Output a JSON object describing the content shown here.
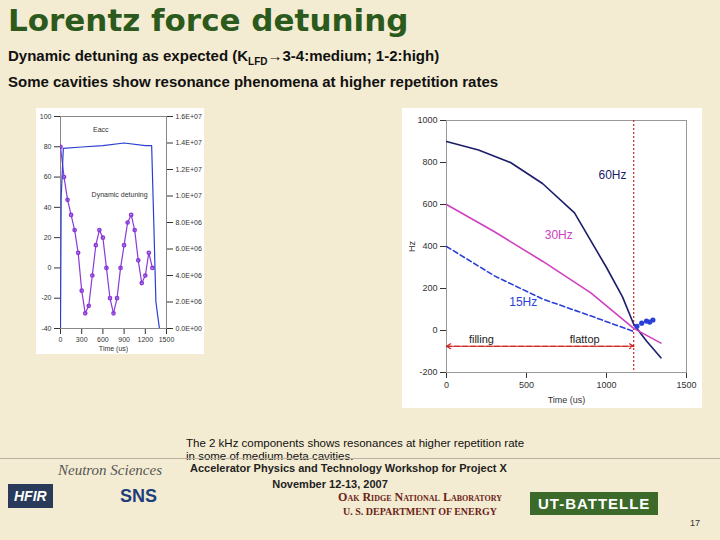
{
  "title": "Lorentz force detuning",
  "subtitle": [
    [
      {
        "text": "Dynamic detuning as expected (K"
      },
      {
        "text": "LFD",
        "sub": true
      },
      {
        "text": "→3-4:medium; 1-2:high)"
      }
    ],
    [
      {
        "text": "Some cavities show resonance phenomena at higher repetition rates"
      }
    ]
  ],
  "caption": "The 2 kHz components shows resonances at higher repetition rate in some of medium beta cavities.",
  "footer": {
    "workshop": "Accelerator Physics and Technology Workshop for Project X",
    "date": "November 12-13, 2007",
    "lab": "Oak Ridge National Laboratory",
    "department": "U. S. DEPARTMENT OF ENERGY",
    "page": "17",
    "logos": [
      "Neutron Sciences",
      "HFIR",
      "SNS",
      "UT-BATTELLE"
    ]
  },
  "chart_data": [
    {
      "type": "line",
      "xlabel": "Time (us)",
      "xlim": [
        0,
        1500
      ],
      "xticks": [
        0,
        300,
        600,
        900,
        1200,
        1500
      ],
      "ylim": [
        -40,
        100
      ],
      "yticks": [
        -40,
        -20,
        0,
        20,
        40,
        60,
        80,
        100
      ],
      "y2lim": [
        0,
        16000000
      ],
      "y2ticks": [
        {
          "value": 0,
          "label": "0.0E+00"
        },
        {
          "value": 2000000,
          "label": "2.0E+06"
        },
        {
          "value": 4000000,
          "label": "4.0E+06"
        },
        {
          "value": 6000000,
          "label": "6.0E+06"
        },
        {
          "value": 8000000,
          "label": "8.0E+06"
        },
        {
          "value": 10000000,
          "label": "1.0E+07"
        },
        {
          "value": 12000000,
          "label": "1.2E+07"
        },
        {
          "value": 14000000,
          "label": "1.4E+07"
        },
        {
          "value": 16000000,
          "label": "1.6E+07"
        }
      ],
      "series": [
        {
          "name": "Eacc",
          "axis": "y2",
          "color": "#2a3fd0",
          "line_style": "solid",
          "x": [
            0,
            10,
            40,
            300,
            600,
            900,
            1200,
            1290,
            1320,
            1350,
            1400
          ],
          "values": [
            0,
            10000000,
            13600000,
            13700000,
            13800000,
            14000000,
            13800000,
            13800000,
            8000000,
            2000000,
            0
          ],
          "label_at": [
            460,
            15000000
          ]
        },
        {
          "name": "Dynamic detuning",
          "color": "#8a3ad8",
          "line_style": "solid",
          "marker": "circle",
          "x": [
            0,
            50,
            100,
            150,
            200,
            250,
            300,
            350,
            400,
            450,
            500,
            550,
            600,
            650,
            700,
            750,
            800,
            850,
            900,
            950,
            1000,
            1050,
            1100,
            1150,
            1200,
            1250,
            1300
          ],
          "values": [
            80,
            60,
            45,
            35,
            25,
            10,
            -15,
            -30,
            -25,
            -5,
            15,
            25,
            20,
            0,
            -20,
            -30,
            -20,
            0,
            15,
            30,
            35,
            25,
            5,
            -10,
            -5,
            10,
            0
          ],
          "label_at": [
            440,
            48
          ]
        }
      ]
    },
    {
      "type": "line",
      "xlabel": "Time (us)",
      "ylabel": "Hz",
      "xlim": [
        0,
        1500
      ],
      "xticks": [
        0,
        500,
        1000,
        1500
      ],
      "ylim": [
        -200,
        1000
      ],
      "yticks": [
        -200,
        0,
        200,
        400,
        600,
        800,
        1000
      ],
      "series": [
        {
          "name": "60Hz",
          "color": "#1c1c6a",
          "line_style": "solid",
          "x": [
            0,
            200,
            400,
            600,
            800,
            1000,
            1100,
            1170,
            1250,
            1340
          ],
          "values": [
            900,
            860,
            800,
            700,
            560,
            300,
            160,
            30,
            -50,
            -130
          ],
          "label_at": [
            950,
            740
          ]
        },
        {
          "name": "30Hz",
          "color": "#d040c0",
          "line_style": "solid",
          "x": [
            0,
            300,
            600,
            900,
            1170,
            1340
          ],
          "values": [
            600,
            470,
            330,
            180,
            10,
            -60
          ],
          "label_at": [
            614,
            456
          ]
        },
        {
          "name": "15Hz",
          "color": "#2a3fd8",
          "line_style": "dashed",
          "x": [
            0,
            300,
            600,
            900,
            1170
          ],
          "values": [
            400,
            260,
            150,
            70,
            -5
          ],
          "label_at": [
            392,
            135
          ]
        }
      ],
      "points": {
        "color": "#2a3fd8",
        "marker": "circle",
        "x": [
          1190,
          1220,
          1250,
          1270,
          1290
        ],
        "values": [
          20,
          35,
          45,
          40,
          50
        ]
      },
      "vline": {
        "x": 1170,
        "color": "#d02020",
        "line_style": "dotted"
      },
      "arrow": {
        "x1": 0,
        "x2": 1170,
        "y": -75,
        "color": "#d02020",
        "line_style": "dashed"
      },
      "annotations": [
        {
          "text": "filling",
          "x": 140,
          "y": -45
        },
        {
          "text": "flattop",
          "x": 770,
          "y": -45
        }
      ]
    }
  ]
}
